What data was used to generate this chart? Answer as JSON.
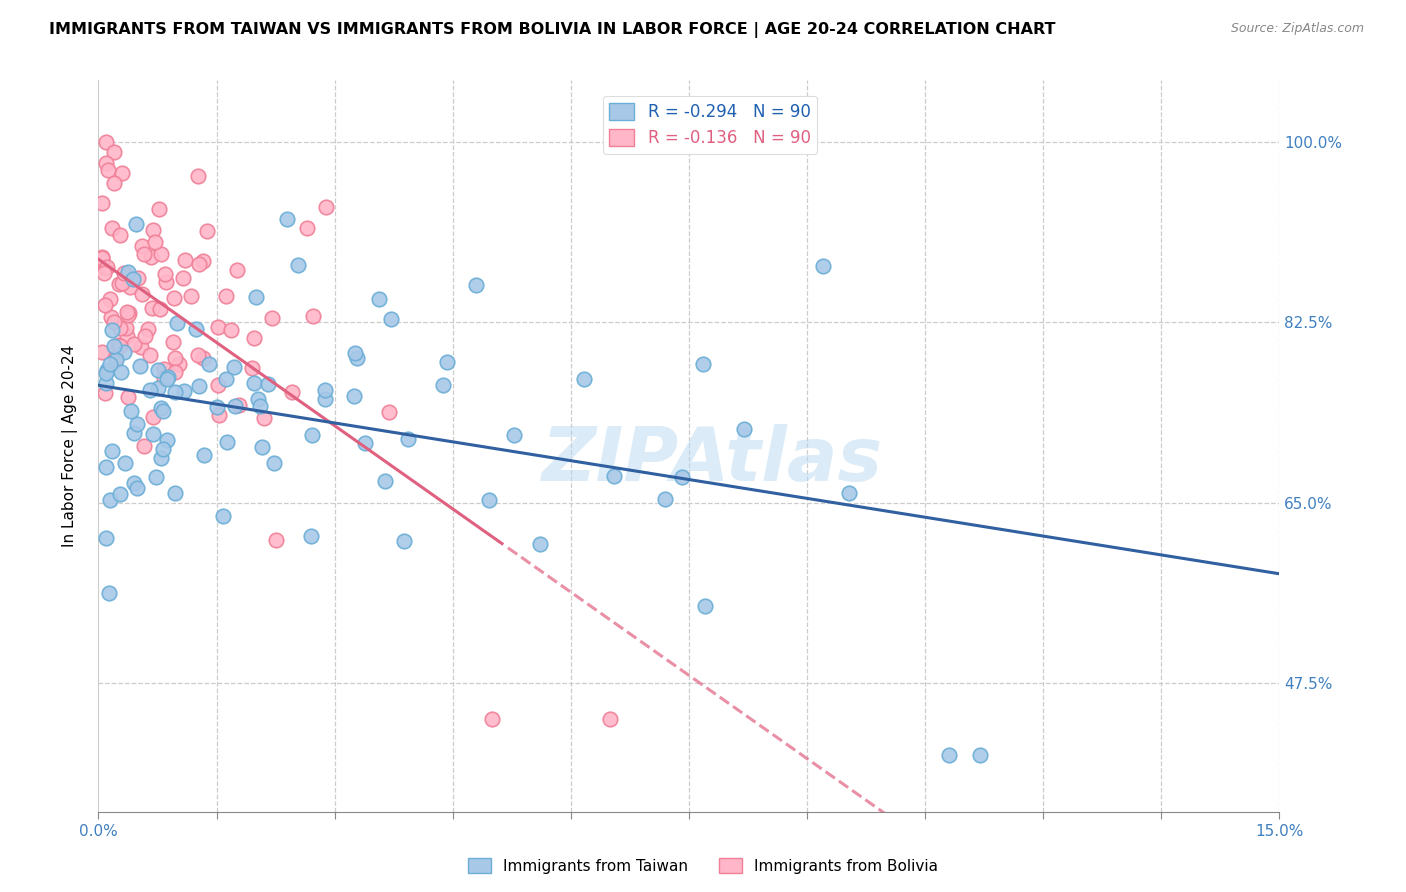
{
  "title": "IMMIGRANTS FROM TAIWAN VS IMMIGRANTS FROM BOLIVIA IN LABOR FORCE | AGE 20-24 CORRELATION CHART",
  "source": "Source: ZipAtlas.com",
  "ylabel": "In Labor Force | Age 20-24",
  "ytick_labels": [
    "47.5%",
    "65.0%",
    "82.5%",
    "100.0%"
  ],
  "x_min": 0.0,
  "x_max": 0.15,
  "y_min": 0.35,
  "y_max": 1.06,
  "taiwan_color": "#a8c8e8",
  "taiwan_edge": "#6baed6",
  "bolivia_color": "#ffb6c8",
  "bolivia_edge": "#f08098",
  "taiwan_R": -0.294,
  "taiwan_N": 90,
  "bolivia_R": -0.136,
  "bolivia_N": 90,
  "taiwan_line_color": "#3060a0",
  "bolivia_line_color": "#e06080",
  "watermark": "ZIPAtlas",
  "legend_taiwan_label": "Immigrants from Taiwan",
  "legend_bolivia_label": "Immigrants from Bolivia",
  "legend_R_color_taiwan": "#2060b0",
  "legend_R_color_bolivia": "#e06080",
  "legend_N_color": "#2060b0",
  "ytick_color": "#4080c0",
  "xtick_label_color": "#4080c0"
}
